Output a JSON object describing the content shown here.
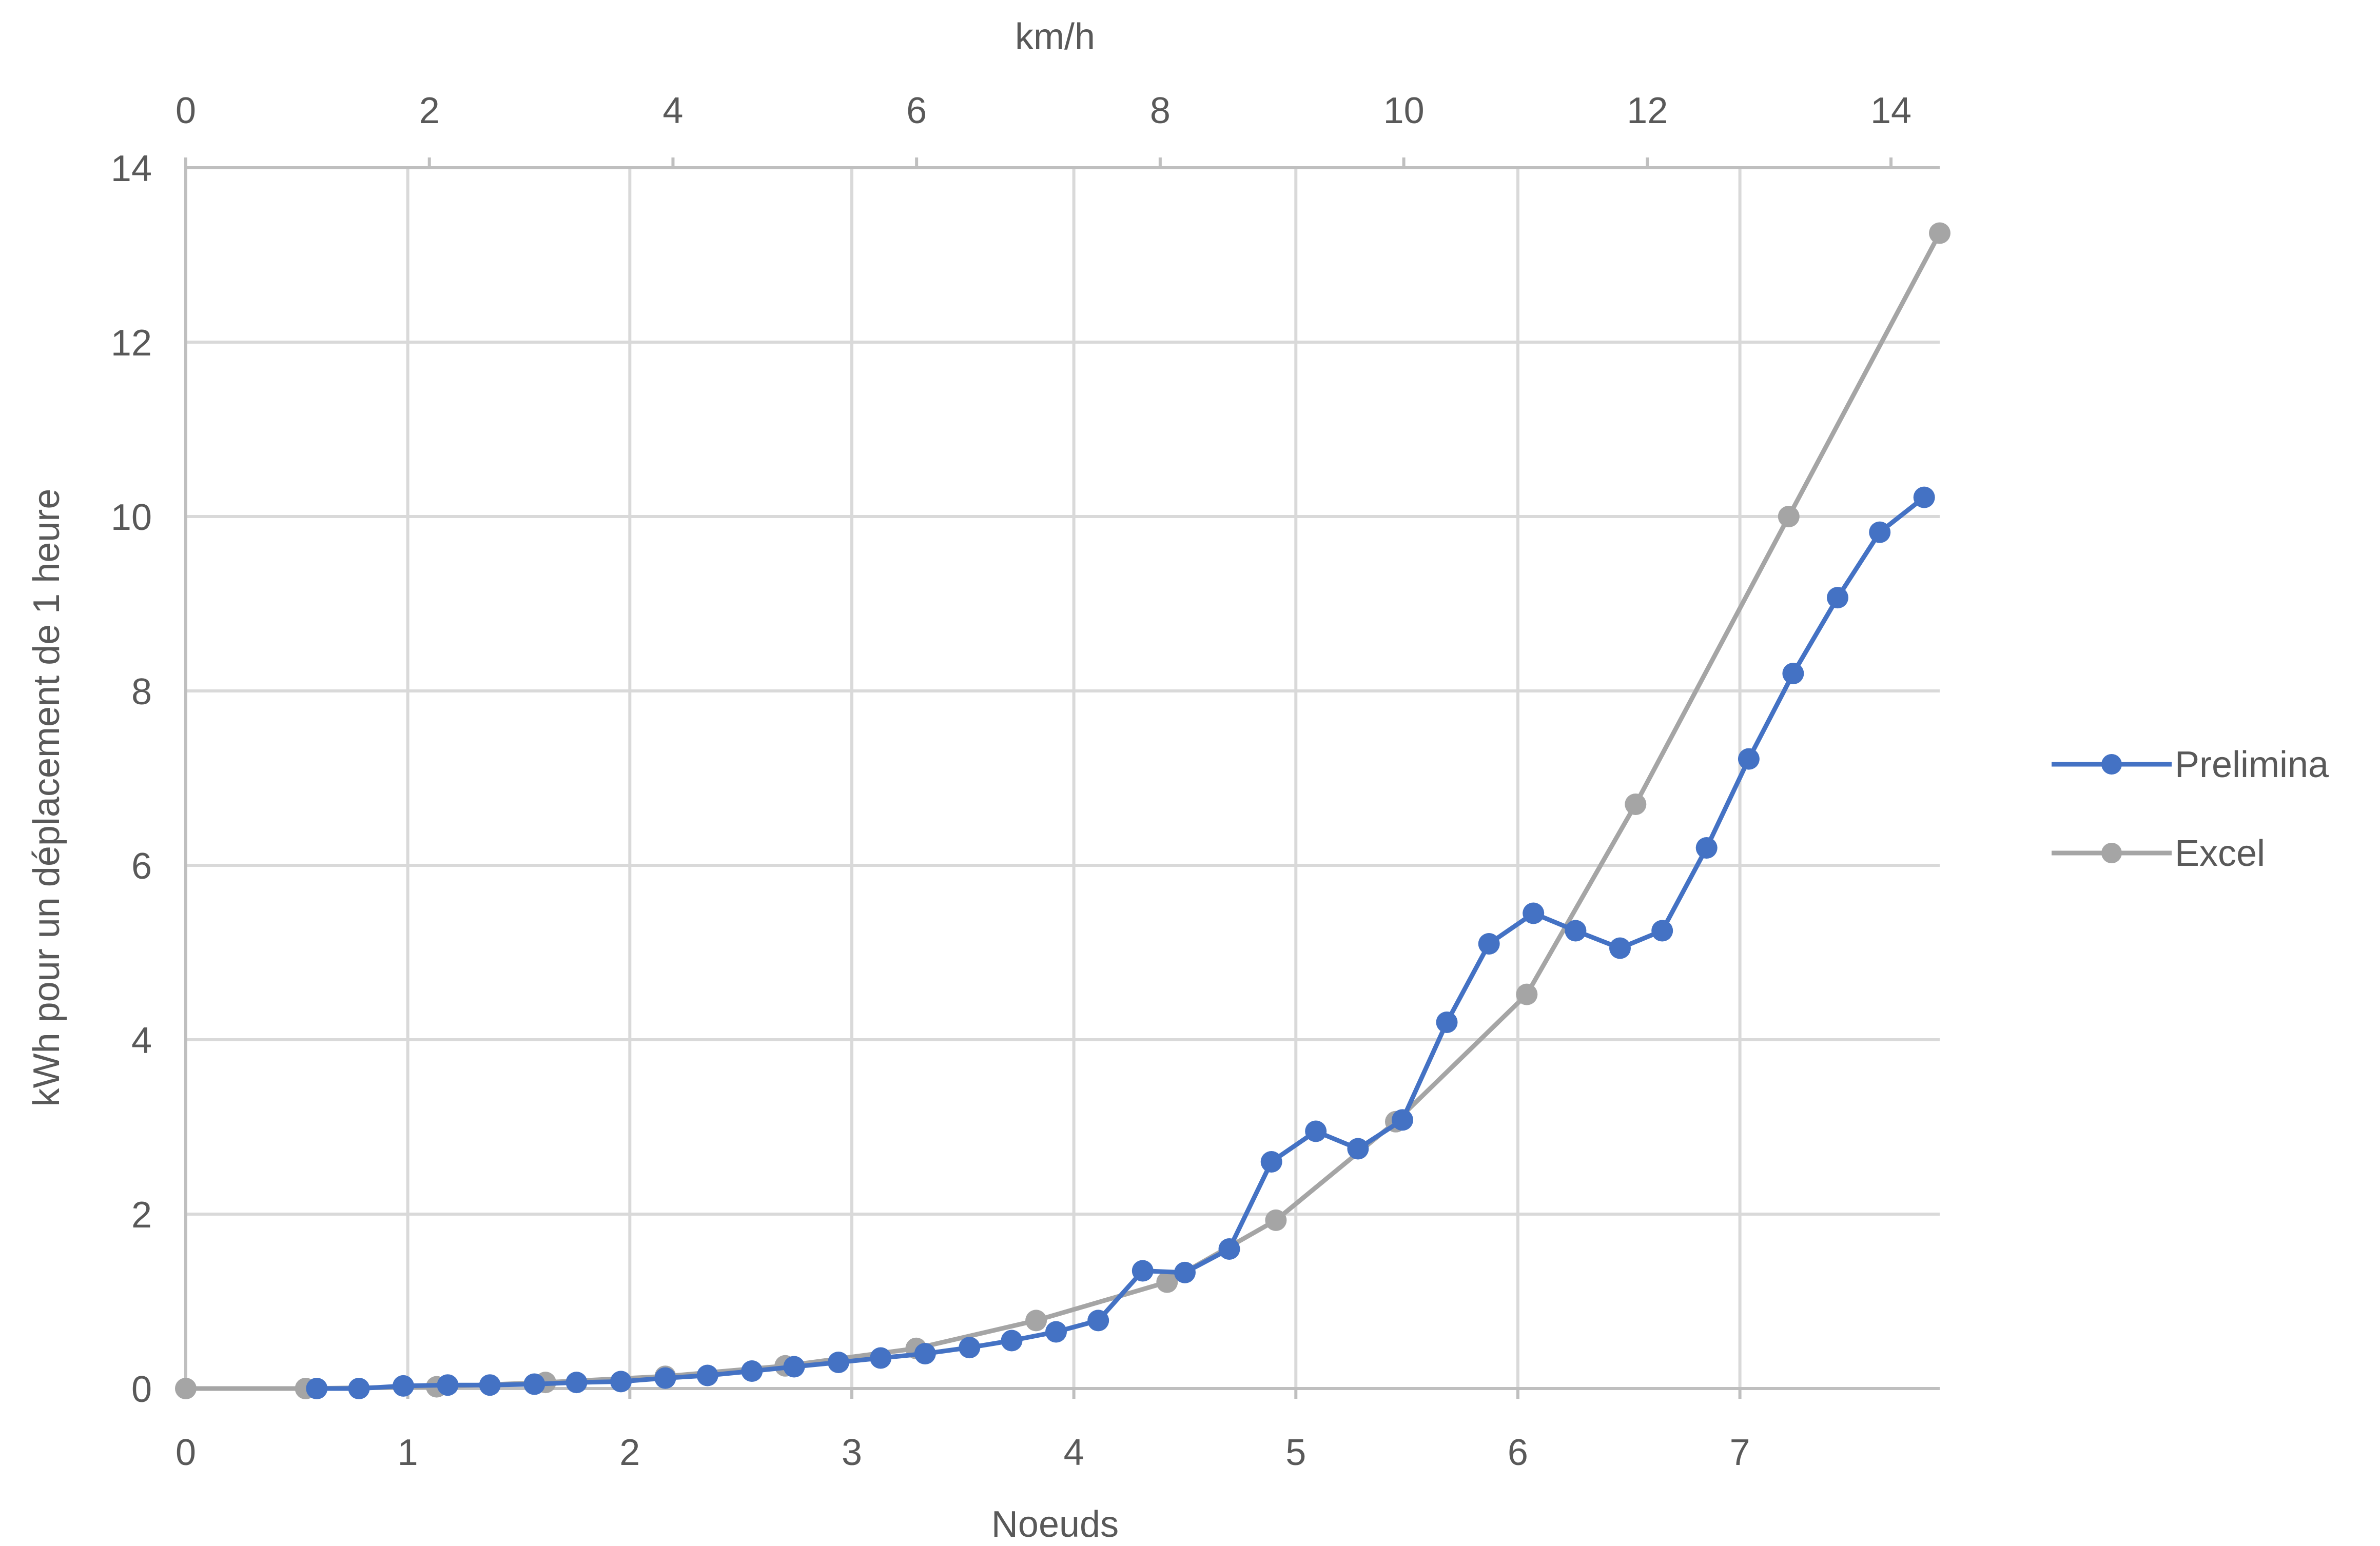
{
  "chart_data": {
    "type": "scatter",
    "xlabel": "Noeuds",
    "x2label": "km/h",
    "ylabel": "kWh pour un déplacement de 1 heure",
    "xlim": [
      0,
      7.9
    ],
    "x2lim": [
      0,
      14.4
    ],
    "ylim": [
      0,
      14
    ],
    "x_ticks": [
      "0",
      "1",
      "2",
      "3",
      "4",
      "5",
      "6",
      "7"
    ],
    "x2_ticks": [
      "0",
      "2",
      "4",
      "6",
      "8",
      "10",
      "12",
      "14"
    ],
    "y_ticks": [
      "0",
      "2",
      "4",
      "6",
      "8",
      "10",
      "12",
      "14"
    ],
    "grid": true,
    "legend_position": "right",
    "series": [
      {
        "name": "Prelimina",
        "color": "#4472c4",
        "points": [
          [
            0.59,
            0.0
          ],
          [
            0.78,
            0.0
          ],
          [
            0.98,
            0.03
          ],
          [
            1.18,
            0.04
          ],
          [
            1.37,
            0.04
          ],
          [
            1.57,
            0.05
          ],
          [
            1.76,
            0.07
          ],
          [
            1.96,
            0.08
          ],
          [
            2.16,
            0.12
          ],
          [
            2.35,
            0.15
          ],
          [
            2.55,
            0.2
          ],
          [
            2.74,
            0.25
          ],
          [
            2.94,
            0.3
          ],
          [
            3.13,
            0.35
          ],
          [
            3.33,
            0.4
          ],
          [
            3.53,
            0.47
          ],
          [
            3.72,
            0.55
          ],
          [
            3.92,
            0.65
          ],
          [
            4.11,
            0.78
          ],
          [
            4.31,
            1.35
          ],
          [
            4.5,
            1.33
          ],
          [
            4.7,
            1.6
          ],
          [
            4.89,
            2.6
          ],
          [
            5.09,
            2.95
          ],
          [
            5.28,
            2.75
          ],
          [
            5.48,
            3.08
          ],
          [
            5.68,
            4.2
          ],
          [
            5.87,
            5.1
          ],
          [
            6.07,
            5.45
          ],
          [
            6.26,
            5.25
          ],
          [
            6.46,
            5.05
          ],
          [
            6.65,
            5.25
          ],
          [
            6.85,
            6.2
          ],
          [
            7.04,
            7.22
          ],
          [
            7.24,
            8.2
          ],
          [
            7.44,
            9.07
          ],
          [
            7.63,
            9.82
          ],
          [
            7.83,
            10.22
          ]
        ]
      },
      {
        "name": "Excel",
        "color": "#a5a5a5",
        "points": [
          [
            0.0,
            0.0
          ],
          [
            0.54,
            0.0
          ],
          [
            1.13,
            0.02
          ],
          [
            1.62,
            0.07
          ],
          [
            2.16,
            0.14
          ],
          [
            2.7,
            0.26
          ],
          [
            3.29,
            0.46
          ],
          [
            3.83,
            0.78
          ],
          [
            4.42,
            1.22
          ],
          [
            4.91,
            1.93
          ],
          [
            5.45,
            3.06
          ],
          [
            6.04,
            4.52
          ],
          [
            6.53,
            6.7
          ],
          [
            7.22,
            10.0
          ],
          [
            7.9,
            13.25
          ]
        ]
      }
    ]
  }
}
